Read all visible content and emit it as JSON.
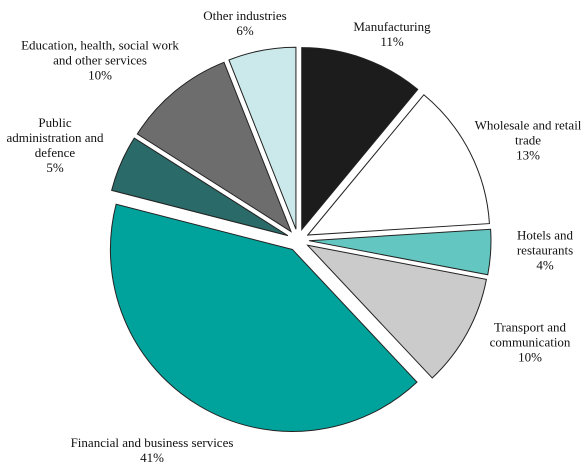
{
  "chart_data": {
    "type": "pie",
    "categories": [
      "Manufacturing",
      "Wholesale and retail trade",
      "Hotels and restaurants",
      "Transport and communication",
      "Financial and business services",
      "Public administration and defence",
      "Education, health, social work and other services",
      "Other industries"
    ],
    "values": [
      11,
      13,
      4,
      10,
      41,
      5,
      10,
      6
    ],
    "value_labels": [
      "11%",
      "13%",
      "4%",
      "10%",
      "41%",
      "5%",
      "10%",
      "6%"
    ],
    "colors": [
      "#1c1c1c",
      "#ffffff",
      "#63c6c0",
      "#cbcbcb",
      "#00a39c",
      "#2a6a68",
      "#6d6d6d",
      "#cbe9ea"
    ]
  }
}
